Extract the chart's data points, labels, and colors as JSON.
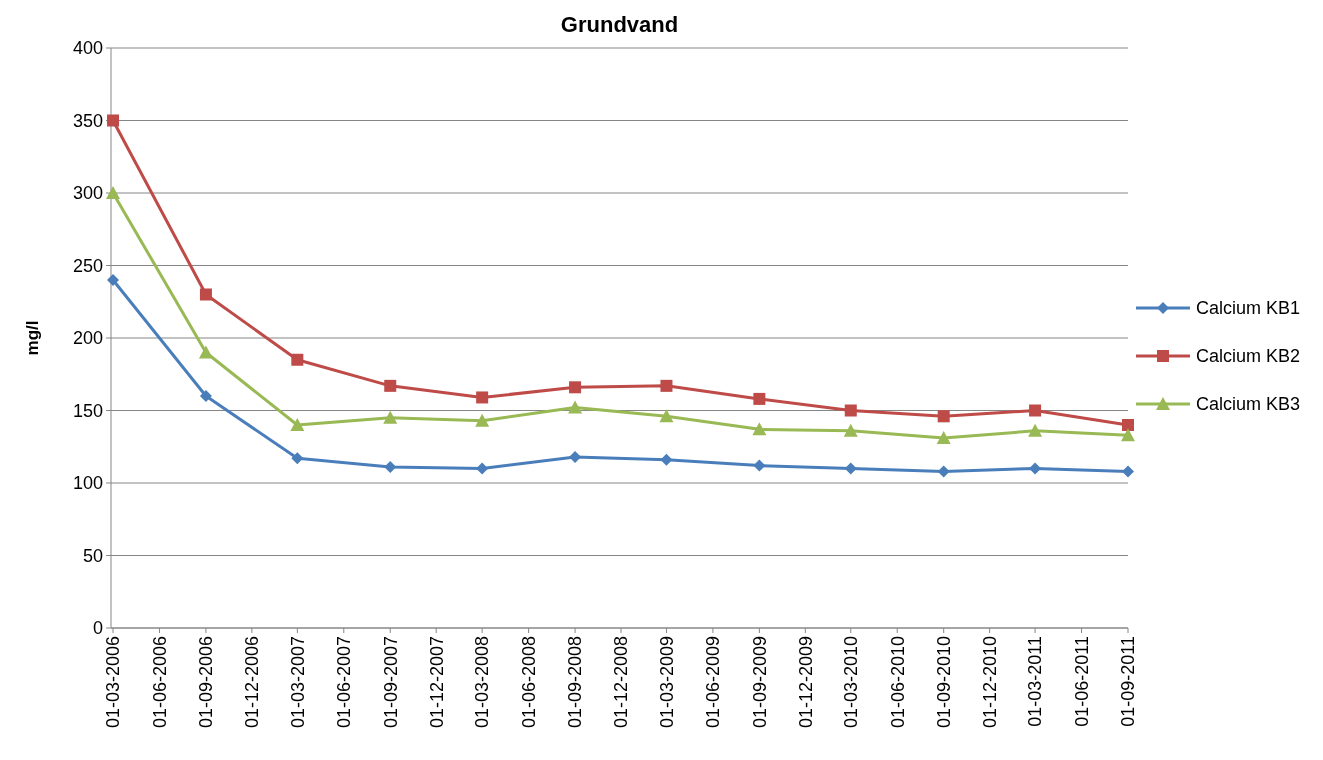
{
  "chart_data": {
    "type": "line",
    "title": "Grundvand",
    "ylabel": "mg/l",
    "x": [
      "2006-03-01",
      "2006-09-01",
      "2007-03-01",
      "2007-09-01",
      "2008-03-01",
      "2008-09-01",
      "2009-03-01",
      "2009-09-01",
      "2010-03-01",
      "2010-09-01",
      "2011-03-01",
      "2011-09-01"
    ],
    "series": [
      {
        "name": "Calcium KB1",
        "color": "#4a7ebb",
        "marker": "diamond",
        "values": [
          240,
          160,
          117,
          111,
          110,
          118,
          116,
          112,
          110,
          108,
          110,
          108
        ]
      },
      {
        "name": "Calcium KB2",
        "color": "#be4b48",
        "marker": "square",
        "values": [
          350,
          230,
          185,
          167,
          159,
          166,
          167,
          158,
          150,
          146,
          150,
          140
        ]
      },
      {
        "name": "Calcium KB3",
        "color": "#98b954",
        "marker": "triangle",
        "values": [
          300,
          190,
          140,
          145,
          143,
          152,
          146,
          137,
          136,
          131,
          136,
          133
        ]
      }
    ],
    "xlim": [
      "2006-02-25",
      "2011-09-01"
    ],
    "xticks": [
      {
        "value": "2006-03-01",
        "label": "01-03-2006"
      },
      {
        "value": "2006-06-01",
        "label": "01-06-2006"
      },
      {
        "value": "2006-09-01",
        "label": "01-09-2006"
      },
      {
        "value": "2006-12-01",
        "label": "01-12-2006"
      },
      {
        "value": "2007-03-01",
        "label": "01-03-2007"
      },
      {
        "value": "2007-06-01",
        "label": "01-06-2007"
      },
      {
        "value": "2007-09-01",
        "label": "01-09-2007"
      },
      {
        "value": "2007-12-01",
        "label": "01-12-2007"
      },
      {
        "value": "2008-03-01",
        "label": "01-03-2008"
      },
      {
        "value": "2008-06-01",
        "label": "01-06-2008"
      },
      {
        "value": "2008-09-01",
        "label": "01-09-2008"
      },
      {
        "value": "2008-12-01",
        "label": "01-12-2008"
      },
      {
        "value": "2009-03-01",
        "label": "01-03-2009"
      },
      {
        "value": "2009-06-01",
        "label": "01-06-2009"
      },
      {
        "value": "2009-09-01",
        "label": "01-09-2009"
      },
      {
        "value": "2009-12-01",
        "label": "01-12-2009"
      },
      {
        "value": "2010-03-01",
        "label": "01-03-2010"
      },
      {
        "value": "2010-06-01",
        "label": "01-06-2010"
      },
      {
        "value": "2010-09-01",
        "label": "01-09-2010"
      },
      {
        "value": "2010-12-01",
        "label": "01-12-2010"
      },
      {
        "value": "2011-03-01",
        "label": "01-03-2011"
      },
      {
        "value": "2011-06-01",
        "label": "01-06-2011"
      },
      {
        "value": "2011-09-01",
        "label": "01-09-2011"
      }
    ],
    "ylim": [
      0,
      400
    ],
    "yticks": [
      0,
      50,
      100,
      150,
      200,
      250,
      300,
      350,
      400
    ],
    "grid": "y",
    "legend": "right",
    "line_style": "solid"
  }
}
